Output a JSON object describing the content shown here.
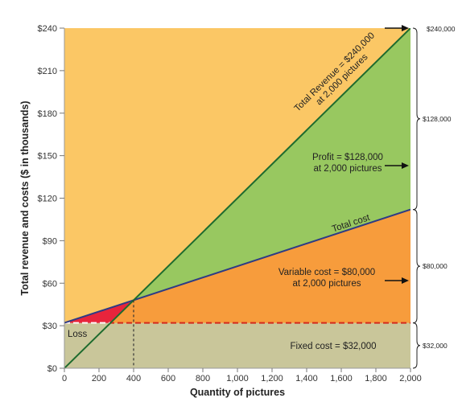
{
  "chart_data": {
    "type": "area",
    "xlabel": "Quantity of pictures",
    "ylabel": "Total revenue and costs ($ in thousands)",
    "xlim": [
      0,
      2000
    ],
    "ylim": [
      0,
      240
    ],
    "x_ticks": [
      0,
      200,
      400,
      600,
      800,
      1000,
      1200,
      1400,
      1600,
      1800,
      2000
    ],
    "x_tick_labels": [
      "0",
      "200",
      "400",
      "600",
      "800",
      "1,000",
      "1,200",
      "1,400",
      "1,600",
      "1,800",
      "2,000"
    ],
    "y_ticks": [
      0,
      30,
      60,
      90,
      120,
      150,
      180,
      210,
      240
    ],
    "y_tick_labels": [
      "$0",
      "$30",
      "$60",
      "$90",
      "$120",
      "$150",
      "$180",
      "$210",
      "$240"
    ],
    "series": [
      {
        "name": "Total Revenue",
        "x": [
          0,
          2000
        ],
        "y": [
          0,
          240
        ]
      },
      {
        "name": "Total cost",
        "x": [
          0,
          2000
        ],
        "y": [
          32,
          112
        ]
      },
      {
        "name": "Fixed cost",
        "x": [
          0,
          2000
        ],
        "y": [
          32,
          32
        ]
      }
    ],
    "break_even": {
      "x": 400,
      "y": 48
    },
    "regions": [
      {
        "name": "Loss",
        "label": "Loss",
        "color": "#e8243c"
      },
      {
        "name": "Profit",
        "label": "Profit = $128,000\nat 2,000 pictures",
        "color": "#98c860"
      },
      {
        "name": "Variable cost",
        "label": "Variable cost = $80,000\nat 2,000 pictures",
        "color": "#f79c3c"
      },
      {
        "name": "Fixed cost",
        "label": "Fixed cost = $32,000",
        "color": "#c9c69a"
      }
    ],
    "background_color": "#fbc765",
    "line_labels": [
      {
        "name": "Total Revenue",
        "label": "Total Revenue = $240,000\nat 2,000 pictures"
      },
      {
        "name": "Total cost",
        "label": "Total cost"
      }
    ],
    "braces": [
      {
        "label": "$240,000",
        "from": 0,
        "to": 240
      },
      {
        "label": "$128,000",
        "from": 112,
        "to": 240
      },
      {
        "label": "$80,000",
        "from": 32,
        "to": 112
      },
      {
        "label": "$32,000",
        "from": 0,
        "to": 32
      }
    ],
    "colors": {
      "revenue_line": "#1e6b2e",
      "cost_line": "#2e3b85",
      "fixed_line": "#d42a1c",
      "dotted": "#333333",
      "arrow": "#111111"
    }
  }
}
